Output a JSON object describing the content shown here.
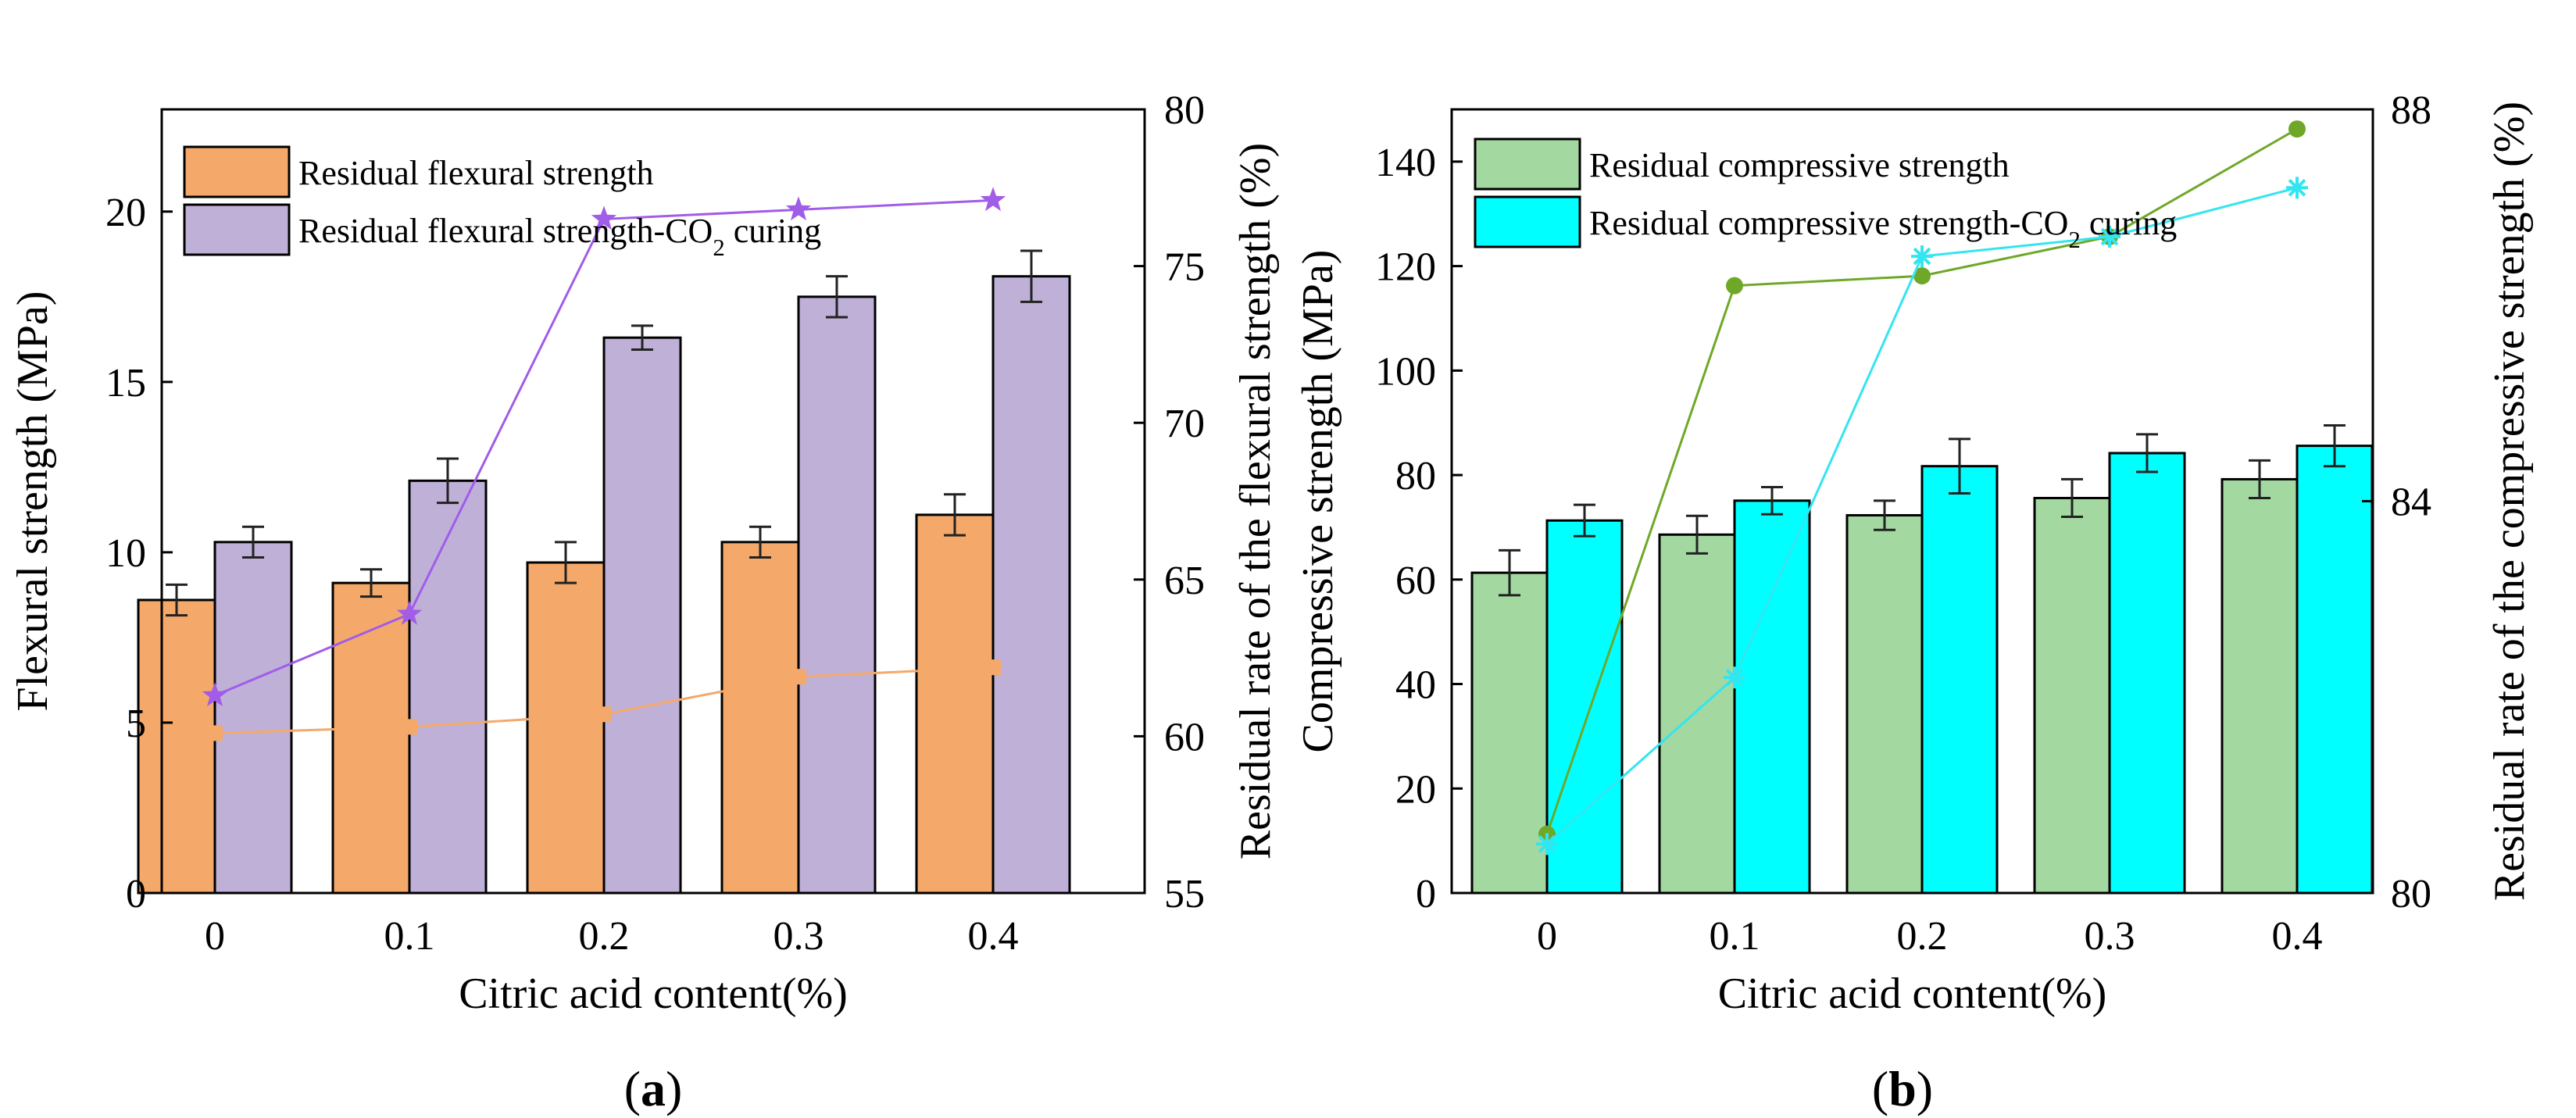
{
  "chart_data": [
    {
      "type": "bar",
      "panel_label": "a",
      "categories": [
        "0",
        "0.1",
        "0.2",
        "0.3",
        "0.4"
      ],
      "xlabel": "Citric acid content(%)",
      "ylabel": "Flexural strength (MPa)",
      "ylabel_right": "Residual rate of the flexural strength (%)",
      "ylim": [
        0,
        23
      ],
      "yticks": [
        0,
        5,
        10,
        15,
        20
      ],
      "ylim_right": [
        55,
        80
      ],
      "yticks_right": [
        55,
        60,
        65,
        70,
        75,
        80
      ],
      "grid": false,
      "legend_position": "top-left",
      "series": [
        {
          "name": "Residual flexural strength",
          "kind": "bar",
          "color": "#F4A96A",
          "values": [
            8.6,
            9.1,
            9.7,
            10.3,
            11.1
          ],
          "errors": [
            0.45,
            0.4,
            0.6,
            0.45,
            0.6
          ]
        },
        {
          "name": "Residual flexural strength-CO₂ curing",
          "kind": "bar",
          "color": "#BFB0D8",
          "values": [
            10.3,
            12.1,
            16.3,
            17.5,
            18.1
          ],
          "errors": [
            0.45,
            0.65,
            0.35,
            0.6,
            0.75
          ]
        },
        {
          "kind": "line",
          "axis": "right",
          "marker": "square",
          "color": "#F4A96A",
          "values": [
            60.1,
            60.3,
            60.7,
            61.9,
            62.2
          ]
        },
        {
          "kind": "line",
          "axis": "right",
          "marker": "star",
          "color": "#A15CE8",
          "values": [
            61.3,
            63.9,
            76.5,
            76.8,
            77.1
          ]
        }
      ]
    },
    {
      "type": "bar",
      "panel_label": "b",
      "categories": [
        "0",
        "0.1",
        "0.2",
        "0.3",
        "0.4"
      ],
      "xlabel": "Citric acid content(%)",
      "ylabel": "Compressive strength (MPa)",
      "ylabel_right": "Residual rate of the compressive  strength (%)",
      "ylim": [
        0,
        150
      ],
      "yticks": [
        0,
        20,
        40,
        60,
        80,
        100,
        120,
        140
      ],
      "ylim_right": [
        80,
        88
      ],
      "yticks_right": [
        80,
        84,
        88
      ],
      "grid": false,
      "legend_position": "top-left",
      "series": [
        {
          "name": "Residual compressive strength",
          "kind": "bar",
          "color": "#A3D9A1",
          "values": [
            61.3,
            68.6,
            72.3,
            75.6,
            79.2
          ],
          "errors": [
            4.3,
            3.6,
            2.8,
            3.6,
            3.6
          ]
        },
        {
          "name": "Residual compressive strength-CO₂ curing",
          "kind": "bar",
          "color": "#00FFFF",
          "values": [
            71.3,
            75.1,
            81.7,
            84.2,
            85.6
          ],
          "errors": [
            3.0,
            2.6,
            5.2,
            3.6,
            3.9
          ]
        },
        {
          "kind": "line",
          "axis": "right",
          "marker": "circle",
          "color": "#6FA828",
          "values": [
            80.6,
            86.2,
            86.3,
            86.7,
            87.8
          ]
        },
        {
          "kind": "line",
          "axis": "right",
          "marker": "asterisk",
          "color": "#33E5F0",
          "values": [
            80.5,
            82.2,
            86.5,
            86.7,
            87.2
          ]
        }
      ]
    }
  ]
}
